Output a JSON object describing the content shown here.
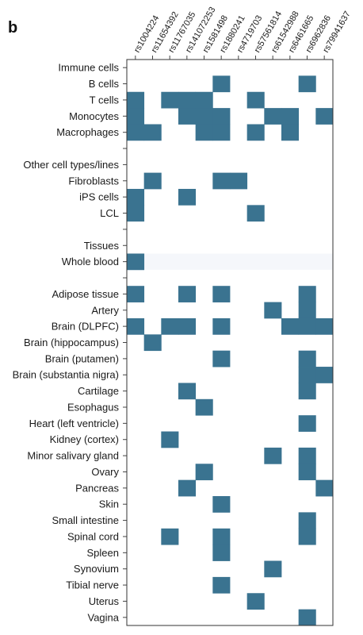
{
  "panel_label": "b",
  "colors": {
    "cell": "#3a7390",
    "group_band": "#f5f7fb",
    "frame": "#333333"
  },
  "chart_data": {
    "type": "heatmap",
    "columns": [
      "rs1004224",
      "rs11654392",
      "rs11767035",
      "rs141072253",
      "rs1581498",
      "rs1880241",
      "rs4719703",
      "rs57561814",
      "rs61542988",
      "rs6461665",
      "rs6962836",
      "rs79941637"
    ],
    "rows": [
      {
        "label": "Immune cells",
        "header": true,
        "cells": []
      },
      {
        "label": "B cells",
        "cells": [
          5,
          10
        ]
      },
      {
        "label": "T cells",
        "cells": [
          0,
          2,
          3,
          4,
          7
        ]
      },
      {
        "label": "Monocytes",
        "cells": [
          0,
          3,
          4,
          5,
          8,
          9,
          11
        ]
      },
      {
        "label": "Macrophages",
        "cells": [
          0,
          1,
          4,
          5,
          7,
          9
        ]
      },
      {
        "label": "",
        "gap": true,
        "cells": []
      },
      {
        "label": "Other cell types/lines",
        "header": true,
        "cells": []
      },
      {
        "label": "Fibroblasts",
        "cells": [
          1,
          5,
          6
        ]
      },
      {
        "label": "iPS cells",
        "cells": [
          0,
          3
        ]
      },
      {
        "label": "LCL",
        "cells": [
          0,
          7
        ]
      },
      {
        "label": "",
        "gap": true,
        "cells": []
      },
      {
        "label": "Tissues",
        "header": true,
        "cells": []
      },
      {
        "label": "Whole blood",
        "cells": [
          0
        ],
        "band": true
      },
      {
        "label": "",
        "gap": true,
        "cells": []
      },
      {
        "label": "Adipose tissue",
        "cells": [
          0,
          3,
          5,
          10
        ]
      },
      {
        "label": "Artery",
        "cells": [
          8,
          10
        ]
      },
      {
        "label": "Brain (DLPFC)",
        "cells": [
          0,
          2,
          3,
          5,
          9,
          10,
          11
        ]
      },
      {
        "label": "Brain (hippocampus)",
        "cells": [
          1
        ]
      },
      {
        "label": "Brain (putamen)",
        "cells": [
          5,
          10
        ]
      },
      {
        "label": "Brain (substantia nigra)",
        "cells": [
          10,
          11
        ]
      },
      {
        "label": "Cartilage",
        "cells": [
          3,
          10
        ]
      },
      {
        "label": "Esophagus",
        "cells": [
          4
        ]
      },
      {
        "label": "Heart (left ventricle)",
        "cells": [
          10
        ]
      },
      {
        "label": "Kidney (cortex)",
        "cells": [
          2
        ]
      },
      {
        "label": "Minor salivary gland",
        "cells": [
          8,
          10
        ]
      },
      {
        "label": "Ovary",
        "cells": [
          4,
          10
        ]
      },
      {
        "label": "Pancreas",
        "cells": [
          3,
          11
        ]
      },
      {
        "label": "Skin",
        "cells": [
          5
        ]
      },
      {
        "label": "Small intestine",
        "cells": [
          10
        ]
      },
      {
        "label": "Spinal cord",
        "cells": [
          2,
          5,
          10
        ]
      },
      {
        "label": "Spleen",
        "cells": [
          5
        ]
      },
      {
        "label": "Synovium",
        "cells": [
          8
        ]
      },
      {
        "label": "Tibial nerve",
        "cells": [
          5
        ]
      },
      {
        "label": "Uterus",
        "cells": [
          7
        ]
      },
      {
        "label": "Vagina",
        "cells": [
          10
        ]
      }
    ]
  }
}
